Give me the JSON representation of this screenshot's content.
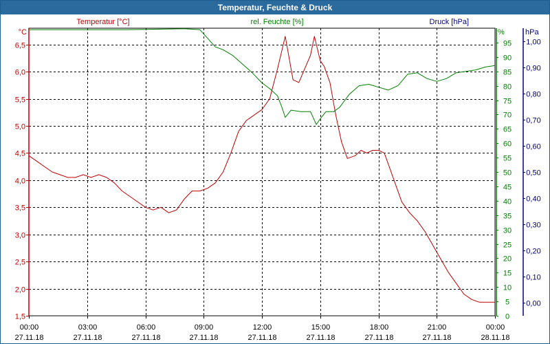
{
  "window": {
    "title": "Temperatur, Feuchte & Druck"
  },
  "colors": {
    "temperature": "#c00000",
    "humidity": "#008000",
    "pressure": "#000080",
    "grid": "#000000",
    "title_bg": "#2a6a9c"
  },
  "chart_data": {
    "type": "line",
    "title": "Temperatur, Feuchte & Druck",
    "grid": true,
    "x_ticks": [
      {
        "time": "00:00",
        "date": "27.11.18"
      },
      {
        "time": "03:00",
        "date": "27.11.18"
      },
      {
        "time": "06:00",
        "date": "27.11.18"
      },
      {
        "time": "09:00",
        "date": "27.11.18"
      },
      {
        "time": "12:00",
        "date": "27.11.18"
      },
      {
        "time": "15:00",
        "date": "27.11.18"
      },
      {
        "time": "18:00",
        "date": "27.11.18"
      },
      {
        "time": "21:00",
        "date": "27.11.18"
      },
      {
        "time": "00:00",
        "date": "28.11.18"
      }
    ],
    "x_range_hours": [
      0,
      24
    ],
    "axes": {
      "temperature": {
        "label": "Temperatur [°C]",
        "unit": "°C",
        "range": [
          1.5,
          6.8
        ],
        "ticks": [
          "1,5",
          "2,0",
          "2,5",
          "3,0",
          "3,5",
          "4,0",
          "4,5",
          "5,0",
          "5,5",
          "6,0",
          "6,5"
        ],
        "tick_values": [
          1.5,
          2.0,
          2.5,
          3.0,
          3.5,
          4.0,
          4.5,
          5.0,
          5.5,
          6.0,
          6.5
        ]
      },
      "humidity": {
        "label": "rel. Feuchte [%]",
        "unit": "%",
        "range": [
          0,
          100
        ],
        "ticks": [
          "0",
          "5",
          "10",
          "15",
          "20",
          "25",
          "30",
          "35",
          "40",
          "45",
          "50",
          "55",
          "60",
          "65",
          "70",
          "75",
          "80",
          "85",
          "90",
          "95"
        ],
        "tick_values": [
          0,
          5,
          10,
          15,
          20,
          25,
          30,
          35,
          40,
          45,
          50,
          55,
          60,
          65,
          70,
          75,
          80,
          85,
          90,
          95
        ]
      },
      "pressure": {
        "label": "Druck [hPa]",
        "unit": "hPa",
        "range": [
          -0.05,
          1.05
        ],
        "ticks": [
          "0,00",
          "0,10",
          "0,20",
          "0,30",
          "0,40",
          "0,50",
          "0,60",
          "0,70",
          "0,80",
          "0,90",
          "1,00"
        ],
        "tick_values": [
          0.0,
          0.1,
          0.2,
          0.3,
          0.4,
          0.5,
          0.6,
          0.7,
          0.8,
          0.9,
          1.0
        ]
      }
    },
    "series": [
      {
        "name": "Temperatur [°C]",
        "axis": "temperature",
        "x_hours": [
          0,
          0.4,
          0.8,
          1.2,
          1.6,
          2.0,
          2.4,
          2.8,
          3.2,
          3.6,
          4.0,
          4.4,
          4.8,
          5.2,
          5.6,
          6.0,
          6.4,
          6.8,
          7.2,
          7.6,
          8.0,
          8.4,
          8.8,
          9.2,
          9.6,
          10.0,
          10.4,
          10.8,
          11.2,
          11.6,
          12.0,
          12.4,
          12.8,
          13.2,
          13.6,
          13.9,
          14.2,
          14.5,
          14.7,
          15.0,
          15.2,
          15.5,
          15.8,
          16.1,
          16.4,
          16.8,
          17.1,
          17.4,
          17.7,
          18.0,
          18.3,
          18.6,
          18.9,
          19.2,
          19.6,
          20.0,
          20.4,
          20.8,
          21.2,
          21.6,
          22.0,
          22.4,
          22.8,
          23.2,
          23.6,
          24.0
        ],
        "values": [
          4.45,
          4.35,
          4.25,
          4.15,
          4.1,
          4.05,
          4.05,
          4.1,
          4.05,
          4.1,
          4.05,
          3.95,
          3.8,
          3.7,
          3.6,
          3.5,
          3.45,
          3.5,
          3.4,
          3.45,
          3.65,
          3.8,
          3.8,
          3.85,
          3.95,
          4.15,
          4.5,
          4.9,
          5.1,
          5.2,
          5.3,
          5.5,
          6.05,
          6.65,
          5.85,
          5.8,
          6.05,
          6.3,
          6.65,
          6.2,
          6.1,
          5.8,
          5.2,
          4.7,
          4.4,
          4.45,
          4.55,
          4.5,
          4.55,
          4.55,
          4.5,
          4.2,
          3.9,
          3.6,
          3.4,
          3.25,
          3.05,
          2.8,
          2.55,
          2.3,
          2.1,
          1.9,
          1.8,
          1.75,
          1.75,
          1.75
        ]
      },
      {
        "name": "rel. Feuchte [%]",
        "axis": "humidity",
        "x_hours": [
          0,
          1.0,
          2.0,
          3.0,
          4.0,
          5.0,
          6.0,
          7.0,
          8.0,
          8.8,
          9.2,
          9.6,
          10.0,
          10.5,
          11.0,
          11.5,
          12.0,
          12.4,
          12.8,
          13.0,
          13.2,
          13.5,
          14.0,
          14.5,
          14.8,
          15.0,
          15.3,
          15.7,
          16.0,
          16.5,
          17.0,
          17.5,
          18.0,
          18.5,
          19.0,
          19.5,
          20.0,
          20.5,
          21.0,
          21.5,
          22.0,
          22.5,
          23.0,
          23.5,
          24.0
        ],
        "values": [
          99.5,
          99.5,
          99.5,
          99.5,
          99.5,
          99.5,
          99.6,
          99.7,
          99.8,
          99.5,
          96.5,
          93.5,
          92.5,
          90.5,
          87.5,
          84.5,
          81.0,
          79.0,
          76.5,
          73.0,
          69.0,
          71.5,
          71.0,
          71.0,
          66.5,
          68.5,
          71.0,
          71.0,
          72.5,
          77.0,
          80.0,
          80.5,
          79.5,
          78.5,
          80.0,
          84.0,
          84.5,
          82.5,
          81.5,
          82.5,
          84.5,
          85.0,
          85.5,
          86.5,
          87.0
        ]
      }
    ]
  }
}
